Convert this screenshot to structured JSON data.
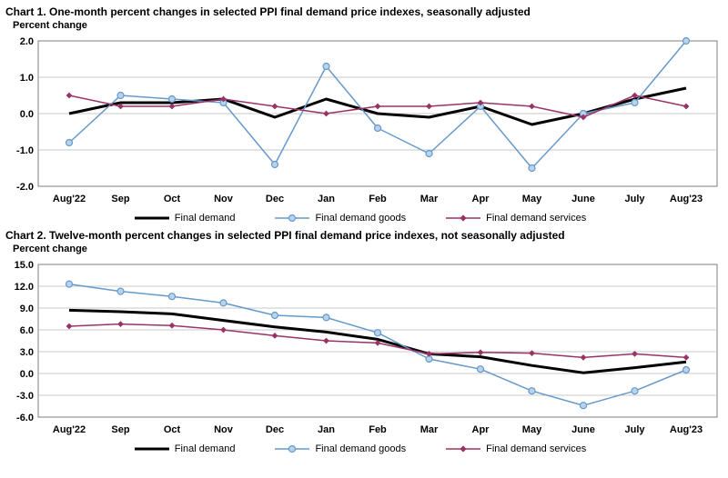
{
  "page": {
    "background": "#ffffff"
  },
  "chart_data": [
    {
      "name": "chart-1",
      "type": "line",
      "title": "Chart 1. One-month percent changes in selected PPI final demand price indexes, seasonally adjusted",
      "ylabel": "Percent change",
      "categories": [
        "Aug'22",
        "Sep",
        "Oct",
        "Nov",
        "Dec",
        "Jan",
        "Feb",
        "Mar",
        "Apr",
        "May",
        "June",
        "July",
        "Aug'23"
      ],
      "ylim": [
        -2.0,
        2.0
      ],
      "yticks": [
        -2.0,
        -1.0,
        0.0,
        1.0,
        2.0
      ],
      "grid": "horizontal",
      "legend_position": "bottom",
      "series": [
        {
          "name": "Final demand",
          "color": "#000000",
          "width": 3,
          "marker": "none",
          "values": [
            0.0,
            0.3,
            0.3,
            0.4,
            -0.1,
            0.4,
            0.0,
            -0.1,
            0.2,
            -0.3,
            0.0,
            0.4,
            0.7
          ]
        },
        {
          "name": "Final demand goods",
          "color": "#6699cc",
          "width": 1.5,
          "marker": "circle",
          "marker_fill": "#b8d4ec",
          "values": [
            -0.8,
            0.5,
            0.4,
            0.3,
            -1.4,
            1.3,
            -0.4,
            -1.1,
            0.2,
            -1.5,
            0.0,
            0.3,
            2.0
          ]
        },
        {
          "name": "Final demand services",
          "color": "#993366",
          "width": 1.5,
          "marker": "diamond",
          "values": [
            0.5,
            0.2,
            0.2,
            0.4,
            0.2,
            0.0,
            0.2,
            0.2,
            0.3,
            0.2,
            -0.1,
            0.5,
            0.2
          ]
        }
      ]
    },
    {
      "name": "chart-2",
      "type": "line",
      "title": "Chart 2. Twelve-month percent changes in selected PPI final demand price indexes, not seasonally adjusted",
      "ylabel": "Percent change",
      "categories": [
        "Aug'22",
        "Sep",
        "Oct",
        "Nov",
        "Dec",
        "Jan",
        "Feb",
        "Mar",
        "Apr",
        "May",
        "June",
        "July",
        "Aug'23"
      ],
      "ylim": [
        -6.0,
        15.0
      ],
      "yticks": [
        -6.0,
        -3.0,
        0.0,
        3.0,
        6.0,
        9.0,
        12.0,
        15.0
      ],
      "grid": "horizontal",
      "legend_position": "bottom",
      "series": [
        {
          "name": "Final demand",
          "color": "#000000",
          "width": 3,
          "marker": "none",
          "values": [
            8.7,
            8.5,
            8.2,
            7.3,
            6.4,
            5.7,
            4.7,
            2.7,
            2.3,
            1.1,
            0.1,
            0.8,
            1.6
          ]
        },
        {
          "name": "Final demand goods",
          "color": "#6699cc",
          "width": 1.5,
          "marker": "circle",
          "marker_fill": "#b8d4ec",
          "values": [
            12.3,
            11.3,
            10.6,
            9.7,
            8.0,
            7.7,
            5.6,
            2.0,
            0.6,
            -2.4,
            -4.4,
            -2.4,
            0.5
          ]
        },
        {
          "name": "Final demand services",
          "color": "#993366",
          "width": 1.5,
          "marker": "diamond",
          "values": [
            6.5,
            6.8,
            6.6,
            6.0,
            5.2,
            4.5,
            4.2,
            2.7,
            2.9,
            2.8,
            2.2,
            2.7,
            2.2
          ]
        }
      ]
    }
  ]
}
